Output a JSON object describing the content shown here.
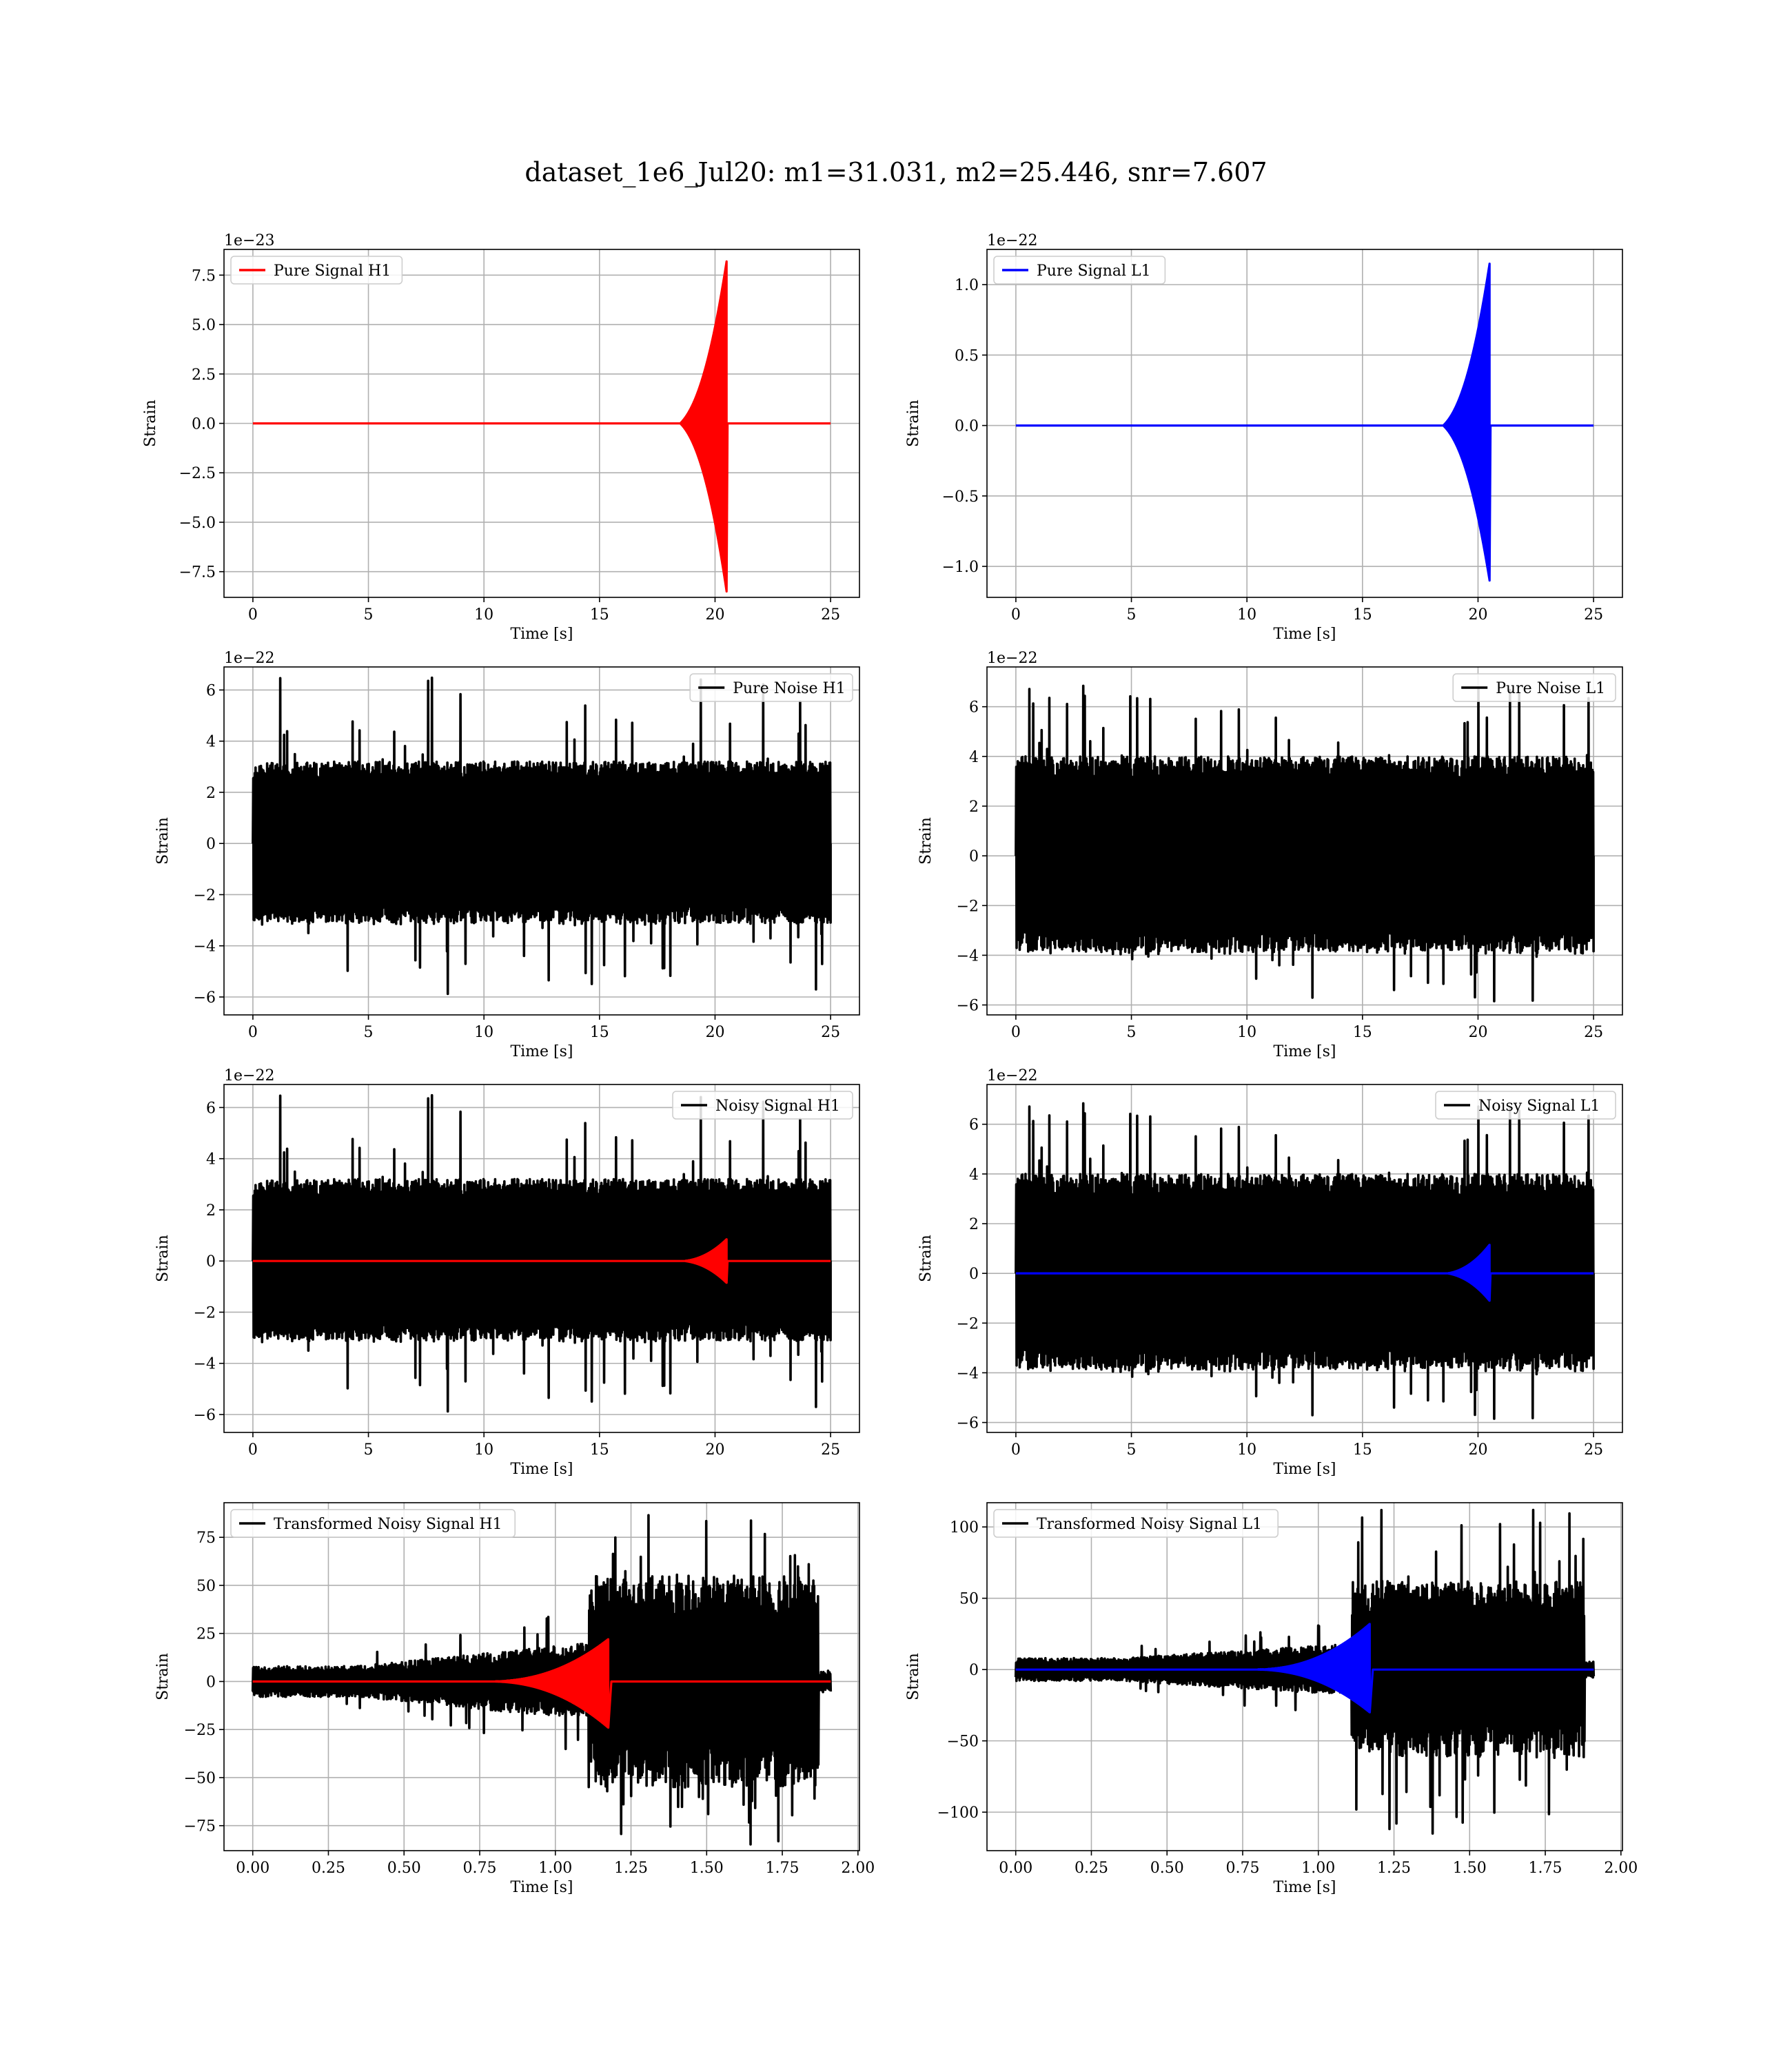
{
  "figure": {
    "title": "dataset_1e6_Jul20: m1=31.031, m2=25.446, snr=7.607",
    "colors": {
      "h1_signal": "#ff0000",
      "l1_signal": "#0000ff",
      "noise": "#000000",
      "grid": "#b0b0b0",
      "frame": "#000000"
    }
  },
  "chart_data": [
    {
      "id": "pure-signal-h1",
      "type": "line",
      "xlabel": "Time [s]",
      "ylabel": "Strain",
      "offset_text": "1e−23",
      "xlim": [
        -1.25,
        26.25
      ],
      "ylim": [
        -8.8,
        8.8
      ],
      "xticks": [
        0,
        5,
        10,
        15,
        20,
        25
      ],
      "xtick_labels": [
        "0",
        "5",
        "10",
        "15",
        "20",
        "25"
      ],
      "yticks": [
        -7.5,
        -5.0,
        -2.5,
        0.0,
        2.5,
        5.0,
        7.5
      ],
      "ytick_labels": [
        "−7.5",
        "−5.0",
        "−2.5",
        "0.0",
        "2.5",
        "5.0",
        "7.5"
      ],
      "grid": true,
      "legend_position": "upper left",
      "series": [
        {
          "name": "Pure Signal H1",
          "color": "#ff0000",
          "kind": "chirp",
          "x_range": [
            0,
            25
          ],
          "t_merge": 20.5,
          "t_start": 18.5,
          "amp_start": 2.4,
          "amp_merge": 8.2,
          "amp_neg_merge": 8.5,
          "ringdown": 0.04
        }
      ],
      "legend": [
        {
          "label": "Pure Signal H1",
          "color": "#ff0000"
        }
      ]
    },
    {
      "id": "pure-signal-l1",
      "type": "line",
      "xlabel": "Time [s]",
      "ylabel": "Strain",
      "offset_text": "1e−22",
      "xlim": [
        -1.25,
        26.25
      ],
      "ylim": [
        -1.22,
        1.25
      ],
      "xticks": [
        0,
        5,
        10,
        15,
        20,
        25
      ],
      "xtick_labels": [
        "0",
        "5",
        "10",
        "15",
        "20",
        "25"
      ],
      "yticks": [
        -1.0,
        -0.5,
        0.0,
        0.5,
        1.0
      ],
      "ytick_labels": [
        "−1.0",
        "−0.5",
        "0.0",
        "0.5",
        "1.0"
      ],
      "grid": true,
      "legend_position": "upper left",
      "series": [
        {
          "name": "Pure Signal L1",
          "color": "#0000ff",
          "kind": "chirp",
          "x_range": [
            0,
            25
          ],
          "t_merge": 20.5,
          "t_start": 18.5,
          "amp_start": 0.32,
          "amp_merge": 1.15,
          "amp_neg_merge": 1.1,
          "ringdown": 0.04
        }
      ],
      "legend": [
        {
          "label": "Pure Signal L1",
          "color": "#0000ff"
        }
      ]
    },
    {
      "id": "pure-noise-h1",
      "type": "line",
      "xlabel": "Time [s]",
      "ylabel": "Strain",
      "offset_text": "1e−22",
      "xlim": [
        -1.25,
        26.25
      ],
      "ylim": [
        -6.7,
        6.9
      ],
      "xticks": [
        0,
        5,
        10,
        15,
        20,
        25
      ],
      "xtick_labels": [
        "0",
        "5",
        "10",
        "15",
        "20",
        "25"
      ],
      "yticks": [
        -6,
        -4,
        -2,
        0,
        2,
        4,
        6
      ],
      "ytick_labels": [
        "−6",
        "−4",
        "−2",
        "0",
        "2",
        "4",
        "6"
      ],
      "grid": true,
      "legend_position": "upper right",
      "series": [
        {
          "name": "Pure Noise H1",
          "color": "#000000",
          "kind": "noise",
          "x_range": [
            0,
            25
          ],
          "band": 3.2,
          "peak_max": 6.5,
          "peak_min": -6.1,
          "seed": 11
        }
      ],
      "legend": [
        {
          "label": "Pure Noise H1",
          "color": "#000000"
        }
      ]
    },
    {
      "id": "pure-noise-l1",
      "type": "line",
      "xlabel": "Time [s]",
      "ylabel": "Strain",
      "offset_text": "1e−22",
      "xlim": [
        -1.25,
        26.25
      ],
      "ylim": [
        -6.4,
        7.6
      ],
      "xticks": [
        0,
        5,
        10,
        15,
        20,
        25
      ],
      "xtick_labels": [
        "0",
        "5",
        "10",
        "15",
        "20",
        "25"
      ],
      "yticks": [
        -6,
        -4,
        -2,
        0,
        2,
        4,
        6
      ],
      "ytick_labels": [
        "−6",
        "−4",
        "−2",
        "0",
        "2",
        "4",
        "6"
      ],
      "grid": true,
      "legend_position": "upper right",
      "series": [
        {
          "name": "Pure Noise L1",
          "color": "#000000",
          "kind": "noise",
          "x_range": [
            0,
            25
          ],
          "band": 4.0,
          "peak_max": 7.2,
          "peak_min": -6.0,
          "seed": 23
        }
      ],
      "legend": [
        {
          "label": "Pure Noise L1",
          "color": "#000000"
        }
      ]
    },
    {
      "id": "noisy-signal-h1",
      "type": "line",
      "xlabel": "Time [s]",
      "ylabel": "Strain",
      "offset_text": "1e−22",
      "xlim": [
        -1.25,
        26.25
      ],
      "ylim": [
        -6.7,
        6.9
      ],
      "xticks": [
        0,
        5,
        10,
        15,
        20,
        25
      ],
      "xtick_labels": [
        "0",
        "5",
        "10",
        "15",
        "20",
        "25"
      ],
      "yticks": [
        -6,
        -4,
        -2,
        0,
        2,
        4,
        6
      ],
      "ytick_labels": [
        "−6",
        "−4",
        "−2",
        "0",
        "2",
        "4",
        "6"
      ],
      "grid": true,
      "legend_position": "upper right",
      "series": [
        {
          "name": "Noisy Signal H1",
          "color": "#000000",
          "kind": "noise",
          "x_range": [
            0,
            25
          ],
          "band": 3.2,
          "peak_max": 6.5,
          "peak_min": -6.1,
          "seed": 11
        },
        {
          "color": "#ff0000",
          "kind": "chirp",
          "x_range": [
            0,
            25
          ],
          "t_merge": 20.5,
          "t_start": 18.7,
          "amp_start": 0.24,
          "amp_merge": 0.85,
          "amp_neg_merge": 0.85,
          "ringdown": 0.04
        }
      ],
      "legend": [
        {
          "label": "Noisy Signal H1",
          "color": "#000000"
        }
      ]
    },
    {
      "id": "noisy-signal-l1",
      "type": "line",
      "xlabel": "Time [s]",
      "ylabel": "Strain",
      "offset_text": "1e−22",
      "xlim": [
        -1.25,
        26.25
      ],
      "ylim": [
        -6.4,
        7.6
      ],
      "xticks": [
        0,
        5,
        10,
        15,
        20,
        25
      ],
      "xtick_labels": [
        "0",
        "5",
        "10",
        "15",
        "20",
        "25"
      ],
      "yticks": [
        -6,
        -4,
        -2,
        0,
        2,
        4,
        6
      ],
      "ytick_labels": [
        "−6",
        "−4",
        "−2",
        "0",
        "2",
        "4",
        "6"
      ],
      "grid": true,
      "legend_position": "upper right",
      "series": [
        {
          "name": "Noisy Signal L1",
          "color": "#000000",
          "kind": "noise",
          "x_range": [
            0,
            25
          ],
          "band": 4.0,
          "peak_max": 7.2,
          "peak_min": -6.0,
          "seed": 23
        },
        {
          "color": "#0000ff",
          "kind": "chirp",
          "x_range": [
            0,
            25
          ],
          "t_merge": 20.5,
          "t_start": 18.7,
          "amp_start": 0.33,
          "amp_merge": 1.15,
          "amp_neg_merge": 1.1,
          "ringdown": 0.04
        }
      ],
      "legend": [
        {
          "label": "Noisy Signal L1",
          "color": "#000000"
        }
      ]
    },
    {
      "id": "transformed-noisy-signal-h1",
      "type": "line",
      "xlabel": "Time [s]",
      "ylabel": "Strain",
      "offset_text": "",
      "xlim": [
        -0.095,
        2.005
      ],
      "ylim": [
        -88,
        93
      ],
      "xticks": [
        0,
        0.25,
        0.5,
        0.75,
        1.0,
        1.25,
        1.5,
        1.75,
        2.0
      ],
      "xtick_labels": [
        "0.00",
        "0.25",
        "0.50",
        "0.75",
        "1.00",
        "1.25",
        "1.50",
        "1.75",
        "2.00"
      ],
      "yticks": [
        -75,
        -50,
        -25,
        0,
        25,
        50,
        75
      ],
      "ytick_labels": [
        "−75",
        "−50",
        "−25",
        "0",
        "25",
        "50",
        "75"
      ],
      "grid": true,
      "legend_position": "upper left",
      "series": [
        {
          "name": "Transformed Noisy Signal H1",
          "color": "#000000",
          "kind": "whitened",
          "x_range": [
            0,
            1.91
          ],
          "end": 1.87,
          "low_band": 8,
          "mid_band": 20,
          "jump": 1.11,
          "high_band": 55,
          "peak_max": 89,
          "peak_min": -86,
          "seed": 5
        },
        {
          "color": "#ff0000",
          "kind": "chirp",
          "x_range": [
            0,
            1.91
          ],
          "t_merge": 1.175,
          "t_start": 0.8,
          "amp_start": 2,
          "amp_merge": 22,
          "amp_neg_merge": 24,
          "ringdown": 0.01
        }
      ],
      "legend": [
        {
          "label": "Transformed Noisy Signal H1",
          "color": "#000000"
        }
      ]
    },
    {
      "id": "transformed-noisy-signal-l1",
      "type": "line",
      "xlabel": "Time [s]",
      "ylabel": "Strain",
      "offset_text": "",
      "xlim": [
        -0.095,
        2.005
      ],
      "ylim": [
        -127,
        117
      ],
      "xticks": [
        0,
        0.25,
        0.5,
        0.75,
        1.0,
        1.25,
        1.5,
        1.75,
        2.0
      ],
      "xtick_labels": [
        "0.00",
        "0.25",
        "0.50",
        "0.75",
        "1.00",
        "1.25",
        "1.50",
        "1.75",
        "2.00"
      ],
      "yticks": [
        -100,
        -50,
        0,
        50,
        100
      ],
      "ytick_labels": [
        "−100",
        "−50",
        "0",
        "50",
        "100"
      ],
      "grid": true,
      "legend_position": "upper left",
      "series": [
        {
          "name": "Transformed Noisy Signal L1",
          "color": "#000000",
          "kind": "whitened",
          "x_range": [
            0,
            1.91
          ],
          "end": 1.88,
          "low_band": 8,
          "mid_band": 18,
          "jump": 1.11,
          "high_band": 62,
          "peak_max": 112,
          "peak_min": -115,
          "seed": 9
        },
        {
          "color": "#0000ff",
          "kind": "chirp",
          "x_range": [
            0,
            1.91
          ],
          "t_merge": 1.17,
          "t_start": 0.8,
          "amp_start": 2,
          "amp_merge": 32,
          "amp_neg_merge": 30,
          "ringdown": 0.01
        }
      ],
      "legend": [
        {
          "label": "Transformed Noisy Signal L1",
          "color": "#000000"
        }
      ]
    }
  ]
}
